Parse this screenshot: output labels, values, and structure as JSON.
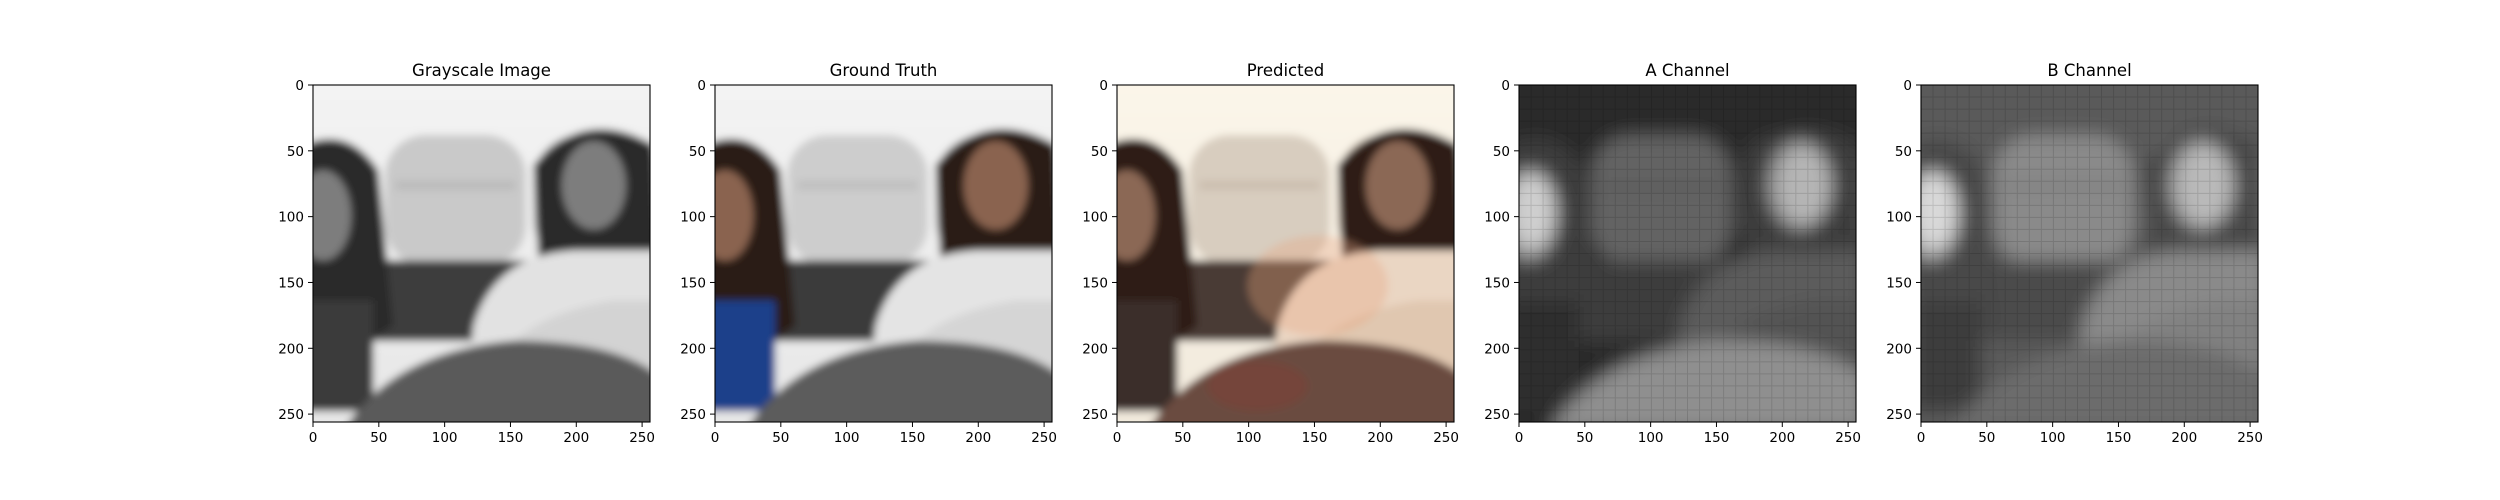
{
  "figure": {
    "panels": [
      {
        "title": "Grayscale Image",
        "kind": "gray"
      },
      {
        "title": "Ground Truth",
        "kind": "truth"
      },
      {
        "title": "Predicted",
        "kind": "pred"
      },
      {
        "title": "A Channel",
        "kind": "chanA"
      },
      {
        "title": "B Channel",
        "kind": "chanB"
      }
    ],
    "x_ticks": [
      "0",
      "50",
      "100",
      "150",
      "200",
      "250"
    ],
    "y_ticks": [
      "0",
      "50",
      "100",
      "150",
      "200",
      "250"
    ],
    "x_tick_values": [
      0,
      50,
      100,
      150,
      200,
      250
    ],
    "y_tick_values": [
      0,
      50,
      100,
      150,
      200,
      250
    ],
    "image_extent": [
      0,
      256
    ]
  }
}
